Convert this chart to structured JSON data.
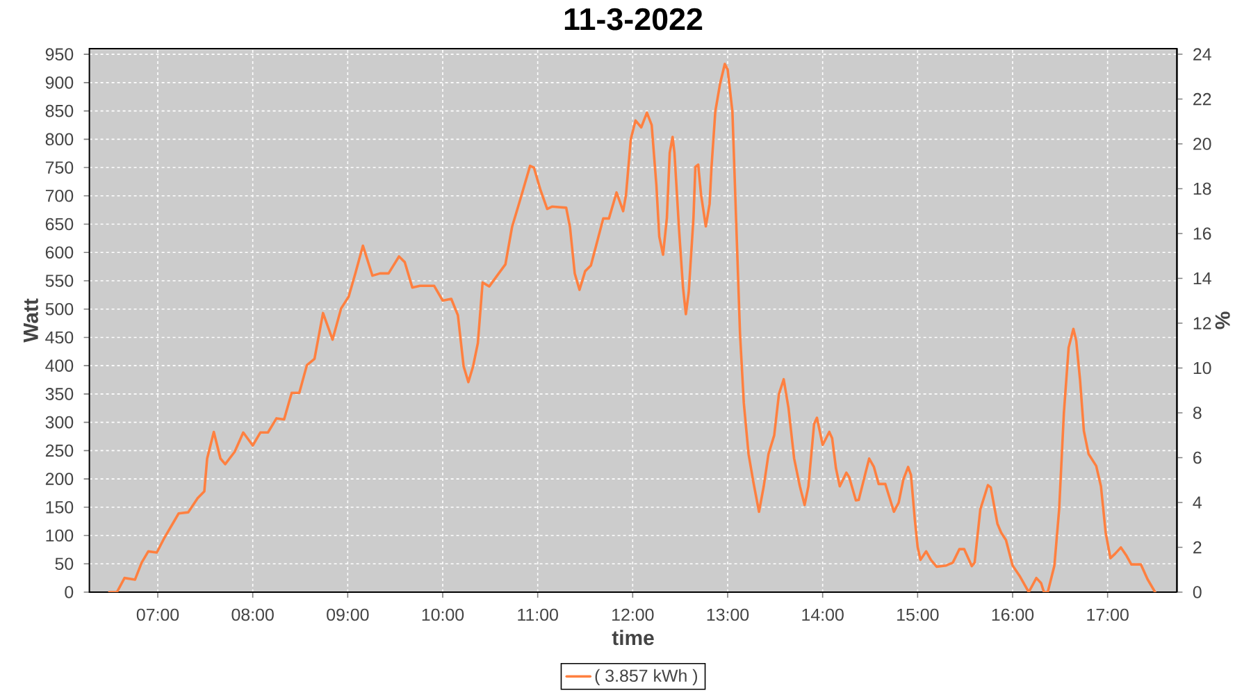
{
  "chart_data": {
    "type": "line",
    "title": "11-3-2022",
    "xlabel": "time",
    "ylabel": "Watt",
    "y2label": "%",
    "xlim": [
      6.28,
      17.73
    ],
    "ylim": [
      0,
      960
    ],
    "y2lim": [
      0,
      24.25
    ],
    "xticks": [
      {
        "value": 7,
        "label": "07:00"
      },
      {
        "value": 8,
        "label": "08:00"
      },
      {
        "value": 9,
        "label": "09:00"
      },
      {
        "value": 10,
        "label": "10:00"
      },
      {
        "value": 11,
        "label": "11:00"
      },
      {
        "value": 12,
        "label": "12:00"
      },
      {
        "value": 13,
        "label": "13:00"
      },
      {
        "value": 14,
        "label": "14:00"
      },
      {
        "value": 15,
        "label": "15:00"
      },
      {
        "value": 16,
        "label": "16:00"
      },
      {
        "value": 17,
        "label": "17:00"
      }
    ],
    "yticks": [
      0,
      50,
      100,
      150,
      200,
      250,
      300,
      350,
      400,
      450,
      500,
      550,
      600,
      650,
      700,
      750,
      800,
      850,
      900,
      950
    ],
    "y2ticks": [
      0,
      2,
      4,
      6,
      8,
      10,
      12,
      14,
      16,
      18,
      20,
      22,
      24
    ],
    "grid": true,
    "legend": "bottom",
    "series": [
      {
        "name": "( 3.857 kWh )",
        "color": "#ff8040",
        "x": [
          6.49,
          6.57,
          6.65,
          6.76,
          6.83,
          6.9,
          6.99,
          7.07,
          7.22,
          7.32,
          7.42,
          7.49,
          7.52,
          7.59,
          7.66,
          7.71,
          7.81,
          7.9,
          8.0,
          8.08,
          8.16,
          8.25,
          8.33,
          8.41,
          8.49,
          8.57,
          8.65,
          8.74,
          8.84,
          8.93,
          9.01,
          9.08,
          9.16,
          9.26,
          9.34,
          9.43,
          9.54,
          9.6,
          9.68,
          9.76,
          9.91,
          10.0,
          10.09,
          10.16,
          10.22,
          10.27,
          10.32,
          10.37,
          10.42,
          10.49,
          10.59,
          10.66,
          10.73,
          10.81,
          10.92,
          10.96,
          11.03,
          11.1,
          11.15,
          11.3,
          11.34,
          11.39,
          11.44,
          11.5,
          11.56,
          11.64,
          11.69,
          11.75,
          11.83,
          11.9,
          11.93,
          11.98,
          12.03,
          12.09,
          12.15,
          12.2,
          12.25,
          12.28,
          12.32,
          12.36,
          12.39,
          12.42,
          12.44,
          12.49,
          12.53,
          12.56,
          12.59,
          12.64,
          12.66,
          12.69,
          12.72,
          12.77,
          12.81,
          12.83,
          12.87,
          12.92,
          12.97,
          13.0,
          13.05,
          13.09,
          13.13,
          13.17,
          13.22,
          13.27,
          13.33,
          13.38,
          13.43,
          13.49,
          13.54,
          13.59,
          13.64,
          13.7,
          13.76,
          13.81,
          13.85,
          13.91,
          13.94,
          14.0,
          14.07,
          14.1,
          14.14,
          14.18,
          14.25,
          14.28,
          14.35,
          14.38,
          14.44,
          14.49,
          14.54,
          14.59,
          14.66,
          14.75,
          14.8,
          14.85,
          14.9,
          14.93,
          14.97,
          15.0,
          15.03,
          15.09,
          15.14,
          15.2,
          15.3,
          15.37,
          15.44,
          15.49,
          15.57,
          15.6,
          15.66,
          15.74,
          15.77,
          15.84,
          15.88,
          15.93,
          16.0,
          16.08,
          16.17,
          16.25,
          16.3,
          16.33,
          16.37,
          16.44,
          16.49,
          16.54,
          16.59,
          16.64,
          16.67,
          16.71,
          16.75,
          16.8,
          16.88,
          16.93,
          16.98,
          17.03,
          17.08,
          17.14,
          17.2,
          17.25,
          17.35,
          17.42,
          17.5
        ],
        "values": [
          0,
          0,
          25,
          22,
          52,
          72,
          70,
          96,
          139,
          141,
          166,
          178,
          236,
          283,
          236,
          226,
          248,
          282,
          259,
          282,
          282,
          307,
          305,
          352,
          352,
          401,
          412,
          493,
          446,
          501,
          522,
          563,
          612,
          559,
          563,
          563,
          593,
          583,
          538,
          541,
          541,
          515,
          518,
          489,
          399,
          371,
          399,
          440,
          547,
          540,
          563,
          579,
          645,
          690,
          753,
          750,
          710,
          677,
          681,
          679,
          645,
          563,
          534,
          567,
          577,
          628,
          660,
          660,
          706,
          673,
          702,
          800,
          833,
          821,
          847,
          825,
          718,
          628,
          596,
          661,
          776,
          804,
          776,
          636,
          538,
          491,
          530,
          661,
          751,
          755,
          702,
          646,
          686,
          751,
          849,
          898,
          933,
          923,
          849,
          653,
          457,
          334,
          244,
          195,
          142,
          187,
          244,
          277,
          350,
          376,
          326,
          236,
          187,
          154,
          187,
          297,
          308,
          260,
          283,
          272,
          219,
          187,
          211,
          203,
          162,
          163,
          203,
          236,
          221,
          191,
          191,
          142,
          158,
          199,
          221,
          207,
          129,
          80,
          57,
          72,
          57,
          45,
          47,
          52,
          76,
          76,
          46,
          52,
          146,
          189,
          185,
          121,
          105,
          92,
          47,
          27,
          0,
          25,
          16,
          0,
          0,
          47,
          146,
          317,
          432,
          465,
          444,
          375,
          285,
          244,
          223,
          187,
          105,
          60,
          68,
          79,
          64,
          49,
          49,
          23,
          0
        ]
      }
    ]
  }
}
